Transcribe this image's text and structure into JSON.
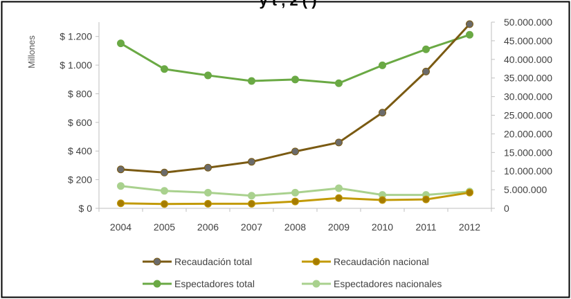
{
  "chart_data": {
    "type": "line",
    "title_fragment": "y t  , 2  (   )",
    "categories": [
      "2004",
      "2005",
      "2006",
      "2007",
      "2008",
      "2009",
      "2010",
      "2011",
      "2012"
    ],
    "y_left": {
      "label": "Millones",
      "ylim": [
        0,
        1300
      ],
      "ticks": [
        0,
        200,
        400,
        600,
        800,
        1000,
        1200
      ],
      "tick_labels": [
        "$ 0",
        "$ 200",
        "$ 400",
        "$ 600",
        "$ 800",
        "$ 1.000",
        "$ 1.200"
      ]
    },
    "y_right": {
      "ylim": [
        0,
        50000000
      ],
      "ticks": [
        0,
        5000000,
        10000000,
        15000000,
        20000000,
        25000000,
        30000000,
        35000000,
        40000000,
        45000000,
        50000000
      ],
      "tick_labels": [
        "0",
        "5.000.000",
        "10.000.000",
        "15.000.000",
        "20.000.000",
        "25.000.000",
        "30.000.000",
        "35.000.000",
        "40.000.000",
        "45.000.000",
        "50.000.000"
      ]
    },
    "series": [
      {
        "name": "Recaudación total",
        "axis": "left",
        "color": "#7a5a12",
        "marker": "#6b6b6b",
        "values": [
          272,
          250,
          284,
          325,
          397,
          460,
          668,
          955,
          1286
        ]
      },
      {
        "name": "Recaudación nacional",
        "axis": "left",
        "color": "#c29a06",
        "marker": "#a67c00",
        "values": [
          35,
          30,
          32,
          32,
          48,
          72,
          58,
          62,
          110
        ]
      },
      {
        "name": "Espectadores total",
        "axis": "right",
        "color": "#6aa944",
        "marker": "#6aa944",
        "values": [
          44300000,
          37400000,
          35700000,
          34200000,
          34600000,
          33600000,
          38400000,
          42700000,
          46600000
        ]
      },
      {
        "name": "Espectadores nacionales",
        "axis": "right",
        "color": "#a9d18e",
        "marker": "#a9d18e",
        "values": [
          6000000,
          4700000,
          4200000,
          3400000,
          4200000,
          5400000,
          3600000,
          3600000,
          4500000
        ]
      }
    ],
    "legend": "bottom",
    "grid": false
  }
}
